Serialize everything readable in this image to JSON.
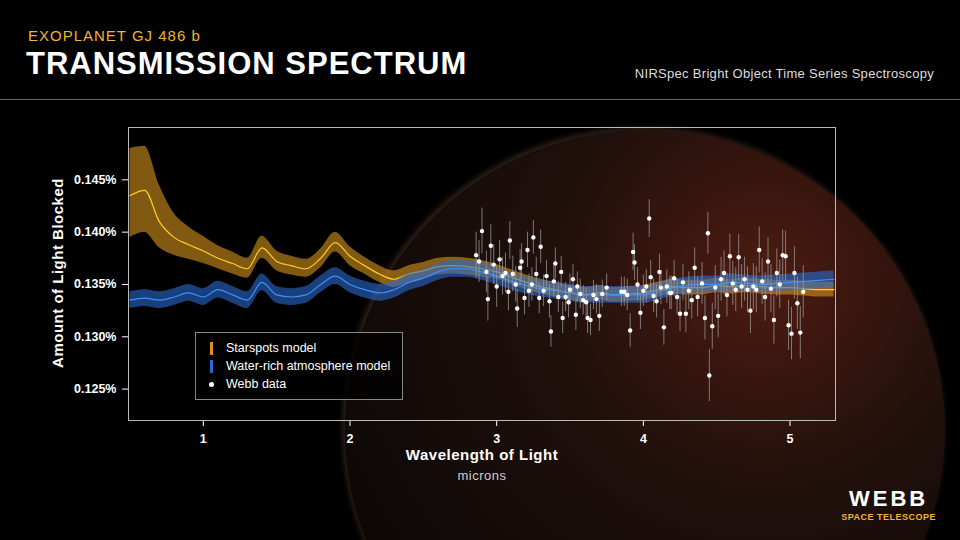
{
  "chart_data": {
    "type": "scatter",
    "subtitle": "EXOPLANET GJ 486 b",
    "title": "TRANSMISSION SPECTRUM",
    "annotations": [
      "NIRSpec Bright Object Time Series Spectroscopy"
    ],
    "logo": {
      "text": "WEBB",
      "subtext": "SPACE TELESCOPE"
    },
    "xlabel": "Wavelength of Light",
    "xunit": "microns",
    "ylabel": "Amount of Light Blocked",
    "xlim": [
      0.49,
      5.31
    ],
    "xticks": [
      1,
      2,
      3,
      4,
      5
    ],
    "ylim": [
      0.122,
      0.15
    ],
    "yticks": [
      {
        "value": 0.125,
        "label": "0.125%"
      },
      {
        "value": 0.13,
        "label": "0.130%"
      },
      {
        "value": 0.135,
        "label": "0.135%"
      },
      {
        "value": 0.14,
        "label": "0.140%"
      },
      {
        "value": 0.145,
        "label": "0.145%"
      }
    ],
    "legend": "bottom-left",
    "series": [
      {
        "name": "Starspots model",
        "type": "line",
        "color": "#d8951a",
        "x": [
          0.5,
          0.6,
          0.7,
          0.8,
          0.9,
          1.0,
          1.1,
          1.2,
          1.3,
          1.4,
          1.5,
          1.6,
          1.7,
          1.8,
          1.9,
          2.0,
          2.1,
          2.2,
          2.3,
          2.4,
          2.5,
          2.6,
          2.7,
          2.8,
          2.9,
          3.0,
          3.1,
          3.2,
          3.3,
          3.4,
          3.5,
          3.6,
          3.7,
          3.8,
          3.9,
          4.0,
          4.1,
          4.2,
          4.3,
          4.4,
          4.5,
          4.6,
          4.7,
          4.8,
          4.9,
          5.0,
          5.1,
          5.2,
          5.3
        ],
        "values": [
          0.1435,
          0.144,
          0.141,
          0.1395,
          0.1388,
          0.1382,
          0.1375,
          0.137,
          0.1365,
          0.1385,
          0.1372,
          0.1368,
          0.1365,
          0.1375,
          0.139,
          0.1377,
          0.1368,
          0.136,
          0.1355,
          0.136,
          0.1363,
          0.1367,
          0.1368,
          0.1367,
          0.1365,
          0.1362,
          0.1357,
          0.1352,
          0.1348,
          0.1345,
          0.1342,
          0.134,
          0.1342,
          0.134,
          0.1341,
          0.1342,
          0.1345,
          0.1348,
          0.1347,
          0.1347,
          0.1349,
          0.1348,
          0.1349,
          0.1348,
          0.1347,
          0.1347,
          0.1346,
          0.1345,
          0.1345
        ],
        "lower": [
          0.1395,
          0.14,
          0.1385,
          0.1378,
          0.1374,
          0.137,
          0.1365,
          0.136,
          0.1356,
          0.1375,
          0.1363,
          0.1359,
          0.1357,
          0.1366,
          0.1381,
          0.1368,
          0.136,
          0.1352,
          0.1347,
          0.1352,
          0.1355,
          0.1359,
          0.136,
          0.1359,
          0.1357,
          0.1355,
          0.135,
          0.1345,
          0.1341,
          0.1338,
          0.1335,
          0.1333,
          0.1335,
          0.1333,
          0.1334,
          0.1335,
          0.1338,
          0.1341,
          0.134,
          0.134,
          0.1342,
          0.1341,
          0.1342,
          0.1341,
          0.134,
          0.134,
          0.1339,
          0.1338,
          0.1338
        ],
        "upper": [
          0.148,
          0.1482,
          0.1445,
          0.1418,
          0.1405,
          0.1396,
          0.1387,
          0.1381,
          0.1375,
          0.1396,
          0.1382,
          0.1377,
          0.1374,
          0.1384,
          0.14,
          0.1386,
          0.1376,
          0.1368,
          0.1363,
          0.1368,
          0.1371,
          0.1375,
          0.1376,
          0.1375,
          0.1373,
          0.1369,
          0.1364,
          0.1359,
          0.1355,
          0.1352,
          0.1349,
          0.1347,
          0.1349,
          0.1347,
          0.1348,
          0.1349,
          0.1352,
          0.1355,
          0.1354,
          0.1354,
          0.1356,
          0.1355,
          0.1356,
          0.1355,
          0.1354,
          0.1354,
          0.1353,
          0.1352,
          0.1352
        ]
      },
      {
        "name": "Water-rich atmosphere model",
        "type": "line",
        "color": "#2a6ad0",
        "x": [
          0.5,
          0.6,
          0.7,
          0.8,
          0.9,
          1.0,
          1.1,
          1.2,
          1.3,
          1.4,
          1.5,
          1.6,
          1.7,
          1.8,
          1.9,
          2.0,
          2.1,
          2.2,
          2.3,
          2.4,
          2.5,
          2.6,
          2.7,
          2.8,
          2.9,
          3.0,
          3.1,
          3.2,
          3.3,
          3.4,
          3.5,
          3.6,
          3.7,
          3.8,
          3.9,
          4.0,
          4.1,
          4.2,
          4.3,
          4.4,
          4.5,
          4.6,
          4.7,
          4.8,
          4.9,
          5.0,
          5.1,
          5.2,
          5.3
        ],
        "values": [
          0.1335,
          0.1337,
          0.1335,
          0.1338,
          0.1342,
          0.1338,
          0.1345,
          0.134,
          0.1335,
          0.1352,
          0.134,
          0.1338,
          0.134,
          0.135,
          0.1358,
          0.135,
          0.1345,
          0.1342,
          0.1345,
          0.1352,
          0.1356,
          0.1362,
          0.1365,
          0.1365,
          0.1362,
          0.1358,
          0.1353,
          0.1349,
          0.1346,
          0.1344,
          0.1342,
          0.134,
          0.134,
          0.134,
          0.134,
          0.134,
          0.1343,
          0.1347,
          0.1349,
          0.135,
          0.135,
          0.1352,
          0.1351,
          0.135,
          0.1351,
          0.1352,
          0.1353,
          0.1354,
          0.1355
        ],
        "lower": [
          0.1327,
          0.1329,
          0.1327,
          0.133,
          0.1334,
          0.133,
          0.1337,
          0.1332,
          0.1327,
          0.1344,
          0.1332,
          0.133,
          0.1332,
          0.1342,
          0.135,
          0.1342,
          0.1337,
          0.1334,
          0.1337,
          0.1344,
          0.1348,
          0.1354,
          0.1357,
          0.1357,
          0.1354,
          0.135,
          0.1345,
          0.1341,
          0.1338,
          0.1336,
          0.1334,
          0.1332,
          0.1332,
          0.1332,
          0.1332,
          0.1332,
          0.1335,
          0.1339,
          0.1341,
          0.1342,
          0.1342,
          0.1344,
          0.1343,
          0.1342,
          0.1343,
          0.1344,
          0.1345,
          0.1346,
          0.1347
        ],
        "upper": [
          0.1343,
          0.1345,
          0.1343,
          0.1346,
          0.135,
          0.1346,
          0.1353,
          0.1348,
          0.1343,
          0.136,
          0.1348,
          0.1346,
          0.1348,
          0.1358,
          0.1366,
          0.1358,
          0.1353,
          0.135,
          0.1353,
          0.136,
          0.1364,
          0.137,
          0.1373,
          0.1373,
          0.137,
          0.1366,
          0.1361,
          0.1357,
          0.1354,
          0.1352,
          0.135,
          0.1348,
          0.1348,
          0.1348,
          0.1348,
          0.1348,
          0.1351,
          0.1355,
          0.1357,
          0.1358,
          0.1358,
          0.136,
          0.1359,
          0.1358,
          0.1359,
          0.136,
          0.1361,
          0.1362,
          0.1363
        ]
      },
      {
        "name": "Webb data",
        "type": "scatter",
        "color": "#ffffff",
        "marker": "circle",
        "x": [
          2.86,
          2.88,
          2.9,
          2.93,
          2.94,
          2.96,
          2.98,
          3.0,
          3.02,
          3.04,
          3.06,
          3.08,
          3.09,
          3.11,
          3.13,
          3.14,
          3.16,
          3.17,
          3.19,
          3.21,
          3.22,
          3.24,
          3.25,
          3.27,
          3.29,
          3.3,
          3.32,
          3.34,
          3.36,
          3.37,
          3.39,
          3.4,
          3.42,
          3.44,
          3.45,
          3.47,
          3.49,
          3.5,
          3.52,
          3.54,
          3.55,
          3.57,
          3.59,
          3.61,
          3.62,
          3.64,
          3.66,
          3.68,
          3.7,
          3.72,
          3.75,
          3.85,
          3.87,
          3.89,
          3.91,
          3.93,
          3.94,
          3.96,
          3.98,
          4.0,
          4.02,
          4.04,
          4.05,
          4.07,
          4.09,
          4.11,
          4.12,
          4.14,
          4.16,
          4.18,
          4.19,
          4.21,
          4.23,
          4.25,
          4.27,
          4.29,
          4.31,
          4.33,
          4.35,
          4.37,
          4.4,
          4.42,
          4.44,
          4.45,
          4.47,
          4.49,
          4.51,
          4.53,
          4.55,
          4.57,
          4.59,
          4.61,
          4.63,
          4.65,
          4.67,
          4.69,
          4.71,
          4.73,
          4.75,
          4.77,
          4.79,
          4.81,
          4.83,
          4.85,
          4.87,
          4.89,
          4.91,
          4.93,
          4.95,
          4.97,
          4.99,
          5.01,
          5.03,
          5.05,
          5.07,
          5.09
        ],
        "values": [
          0.1378,
          0.1372,
          0.1401,
          0.1362,
          0.1336,
          0.1387,
          0.1369,
          0.1348,
          0.1374,
          0.1358,
          0.1361,
          0.1343,
          0.1392,
          0.136,
          0.135,
          0.1327,
          0.1366,
          0.1372,
          0.1337,
          0.1383,
          0.1344,
          0.135,
          0.1395,
          0.136,
          0.1337,
          0.1386,
          0.1344,
          0.1358,
          0.1334,
          0.1305,
          0.1353,
          0.137,
          0.1338,
          0.1362,
          0.1318,
          0.1338,
          0.1333,
          0.1345,
          0.1355,
          0.1321,
          0.1348,
          0.1341,
          0.1335,
          0.1333,
          0.1318,
          0.1316,
          0.134,
          0.1336,
          0.132,
          0.1341,
          0.1347,
          0.1343,
          0.1343,
          0.134,
          0.1306,
          0.1381,
          0.1371,
          0.135,
          0.1323,
          0.1344,
          0.1348,
          0.1413,
          0.1357,
          0.1339,
          0.1334,
          0.1362,
          0.1347,
          0.1309,
          0.1348,
          0.1342,
          0.1342,
          0.1356,
          0.1338,
          0.1322,
          0.1352,
          0.1322,
          0.1344,
          0.1335,
          0.1366,
          0.1338,
          0.1351,
          0.1318,
          0.1399,
          0.1263,
          0.131,
          0.1347,
          0.132,
          0.1355,
          0.1361,
          0.134,
          0.1377,
          0.1351,
          0.1345,
          0.1376,
          0.1348,
          0.1355,
          0.1345,
          0.1325,
          0.1348,
          0.1345,
          0.1383,
          0.1353,
          0.1338,
          0.1372,
          0.1346,
          0.1316,
          0.1361,
          0.135,
          0.1378,
          0.1377,
          0.1311,
          0.1303,
          0.1361,
          0.1332,
          0.1304,
          0.1343
        ],
        "error": [
          0.0022,
          0.002,
          0.0022,
          0.002,
          0.0021,
          0.002,
          0.0019,
          0.002,
          0.0018,
          0.0018,
          0.0019,
          0.0018,
          0.0018,
          0.0017,
          0.0017,
          0.0018,
          0.0017,
          0.0017,
          0.0016,
          0.0017,
          0.0016,
          0.0016,
          0.0016,
          0.0016,
          0.0015,
          0.0016,
          0.0015,
          0.0015,
          0.0016,
          0.0015,
          0.0015,
          0.0015,
          0.0015,
          0.0015,
          0.0015,
          0.0014,
          0.0015,
          0.0015,
          0.0014,
          0.0015,
          0.0014,
          0.0014,
          0.0014,
          0.0014,
          0.0015,
          0.0015,
          0.0014,
          0.0014,
          0.0015,
          0.0013,
          0.0013,
          0.0014,
          0.0014,
          0.0015,
          0.0016,
          0.0018,
          0.0017,
          0.0016,
          0.0016,
          0.0015,
          0.0016,
          0.0018,
          0.0016,
          0.0016,
          0.0016,
          0.0017,
          0.0016,
          0.0017,
          0.0016,
          0.0016,
          0.0016,
          0.0017,
          0.0017,
          0.0017,
          0.0017,
          0.0018,
          0.0018,
          0.0018,
          0.0019,
          0.0019,
          0.002,
          0.0021,
          0.002,
          0.0025,
          0.0022,
          0.0021,
          0.0021,
          0.0021,
          0.0021,
          0.0021,
          0.0021,
          0.0021,
          0.0021,
          0.0022,
          0.0021,
          0.0021,
          0.0022,
          0.0022,
          0.0022,
          0.0022,
          0.0022,
          0.0022,
          0.0023,
          0.0023,
          0.0023,
          0.0023,
          0.0023,
          0.0023,
          0.0024,
          0.0024,
          0.0024,
          0.0025,
          0.0025,
          0.0025,
          0.0025,
          0.0025
        ]
      }
    ]
  }
}
